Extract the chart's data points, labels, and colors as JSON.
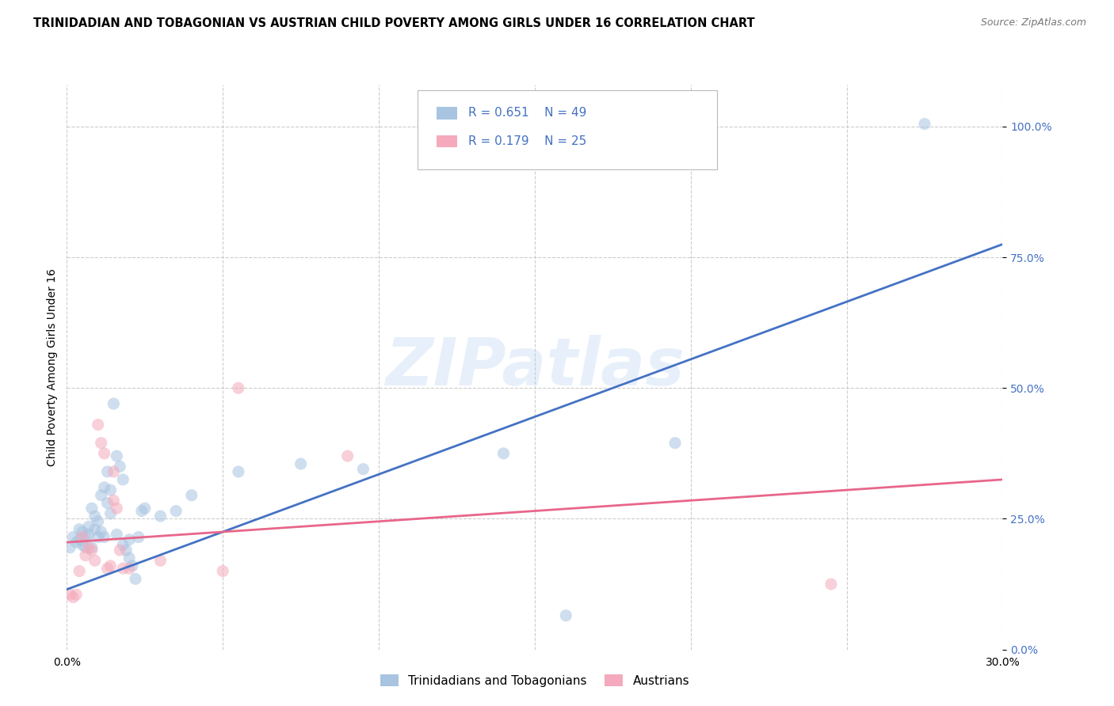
{
  "title": "TRINIDADIAN AND TOBAGONIAN VS AUSTRIAN CHILD POVERTY AMONG GIRLS UNDER 16 CORRELATION CHART",
  "source": "Source: ZipAtlas.com",
  "ylabel": "Child Poverty Among Girls Under 16",
  "xlim": [
    0.0,
    0.3
  ],
  "ylim": [
    0.0,
    1.08
  ],
  "yticks": [
    0.0,
    0.25,
    0.5,
    0.75,
    1.0
  ],
  "ytick_labels": [
    "0.0%",
    "25.0%",
    "50.0%",
    "75.0%",
    "100.0%"
  ],
  "watermark": "ZIPatlas",
  "legend_r1": "R = 0.651",
  "legend_n1": "N = 49",
  "legend_r2": "R = 0.179",
  "legend_n2": "N = 25",
  "legend_label1": "Trinidadians and Tobagonians",
  "legend_label2": "Austrians",
  "blue_color": "#A8C4E0",
  "pink_color": "#F4AABC",
  "blue_line_color": "#4472C4",
  "pink_line_color": "#E8668A",
  "blue_scatter": [
    [
      0.001,
      0.195
    ],
    [
      0.002,
      0.215
    ],
    [
      0.003,
      0.205
    ],
    [
      0.004,
      0.21
    ],
    [
      0.004,
      0.23
    ],
    [
      0.005,
      0.2
    ],
    [
      0.005,
      0.225
    ],
    [
      0.006,
      0.215
    ],
    [
      0.006,
      0.195
    ],
    [
      0.007,
      0.235
    ],
    [
      0.007,
      0.22
    ],
    [
      0.008,
      0.195
    ],
    [
      0.008,
      0.27
    ],
    [
      0.009,
      0.255
    ],
    [
      0.009,
      0.23
    ],
    [
      0.01,
      0.245
    ],
    [
      0.01,
      0.215
    ],
    [
      0.011,
      0.225
    ],
    [
      0.011,
      0.295
    ],
    [
      0.012,
      0.31
    ],
    [
      0.012,
      0.215
    ],
    [
      0.013,
      0.34
    ],
    [
      0.013,
      0.28
    ],
    [
      0.014,
      0.305
    ],
    [
      0.014,
      0.26
    ],
    [
      0.015,
      0.47
    ],
    [
      0.016,
      0.37
    ],
    [
      0.016,
      0.22
    ],
    [
      0.017,
      0.35
    ],
    [
      0.018,
      0.325
    ],
    [
      0.018,
      0.2
    ],
    [
      0.019,
      0.19
    ],
    [
      0.02,
      0.21
    ],
    [
      0.02,
      0.175
    ],
    [
      0.021,
      0.16
    ],
    [
      0.022,
      0.135
    ],
    [
      0.023,
      0.215
    ],
    [
      0.024,
      0.265
    ],
    [
      0.025,
      0.27
    ],
    [
      0.03,
      0.255
    ],
    [
      0.035,
      0.265
    ],
    [
      0.04,
      0.295
    ],
    [
      0.055,
      0.34
    ],
    [
      0.075,
      0.355
    ],
    [
      0.095,
      0.345
    ],
    [
      0.14,
      0.375
    ],
    [
      0.16,
      0.065
    ],
    [
      0.195,
      0.395
    ],
    [
      0.275,
      1.005
    ]
  ],
  "pink_scatter": [
    [
      0.001,
      0.105
    ],
    [
      0.002,
      0.1
    ],
    [
      0.003,
      0.105
    ],
    [
      0.004,
      0.15
    ],
    [
      0.005,
      0.215
    ],
    [
      0.006,
      0.18
    ],
    [
      0.007,
      0.195
    ],
    [
      0.008,
      0.19
    ],
    [
      0.009,
      0.17
    ],
    [
      0.01,
      0.43
    ],
    [
      0.011,
      0.395
    ],
    [
      0.012,
      0.375
    ],
    [
      0.013,
      0.155
    ],
    [
      0.014,
      0.16
    ],
    [
      0.015,
      0.34
    ],
    [
      0.015,
      0.285
    ],
    [
      0.016,
      0.27
    ],
    [
      0.017,
      0.19
    ],
    [
      0.018,
      0.155
    ],
    [
      0.02,
      0.155
    ],
    [
      0.03,
      0.17
    ],
    [
      0.05,
      0.15
    ],
    [
      0.055,
      0.5
    ],
    [
      0.09,
      0.37
    ],
    [
      0.245,
      0.125
    ]
  ],
  "blue_line_x": [
    0.0,
    0.3
  ],
  "blue_line_y": [
    0.115,
    0.775
  ],
  "pink_line_x": [
    0.0,
    0.3
  ],
  "pink_line_y": [
    0.205,
    0.325
  ],
  "background_color": "#FFFFFF",
  "grid_color": "#CCCCCC",
  "title_fontsize": 10.5,
  "axis_label_fontsize": 10,
  "tick_fontsize": 10,
  "scatter_size": 120,
  "scatter_alpha": 0.55
}
